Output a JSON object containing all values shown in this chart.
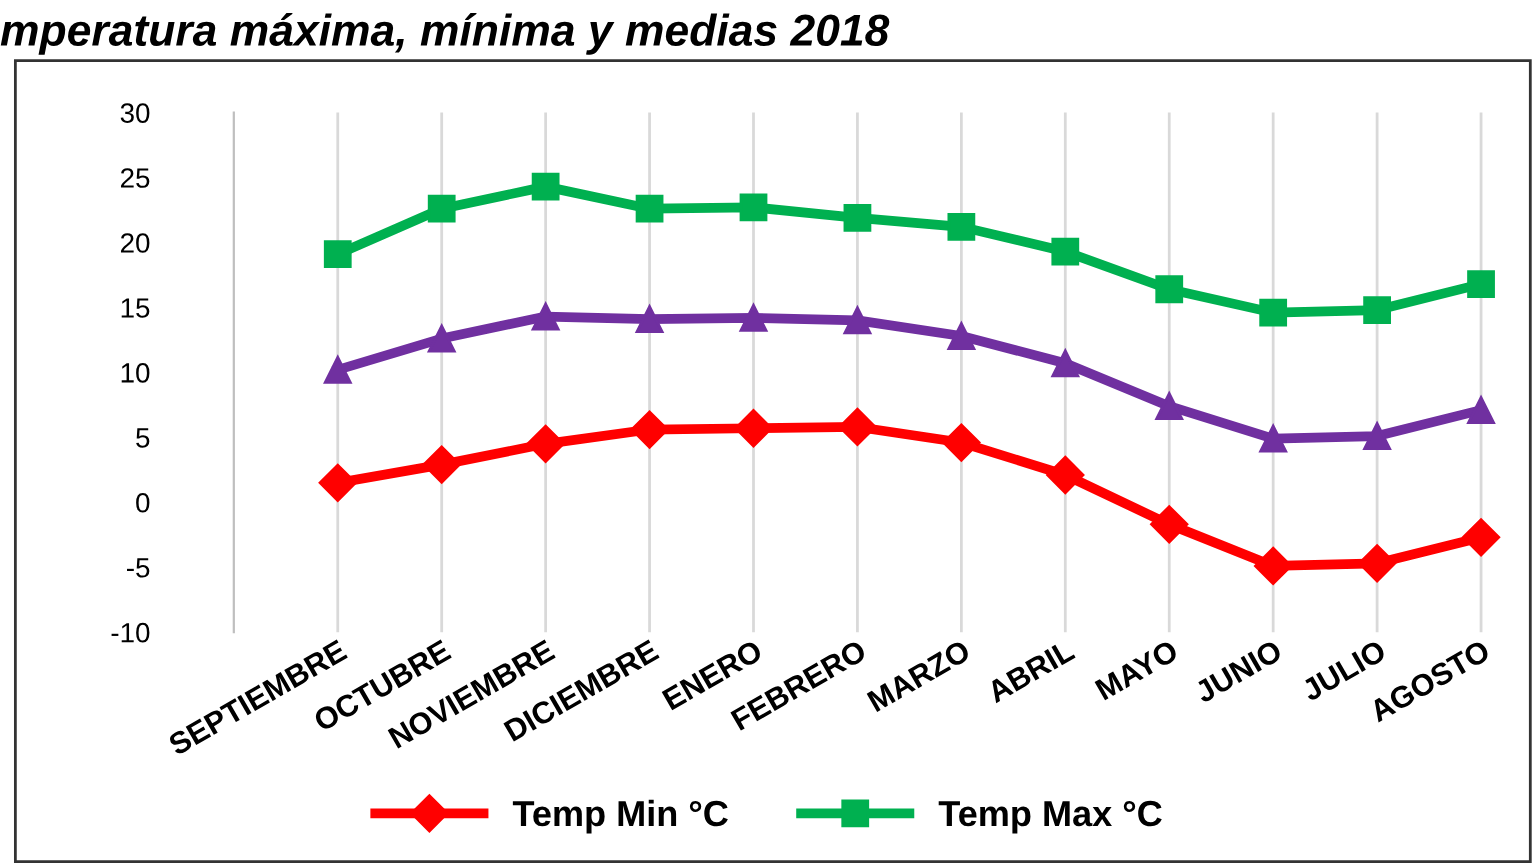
{
  "chart_data": {
    "type": "line",
    "title": "mperatura máxima, mínima y medias 2018",
    "categories": [
      "SEPTIEMBRE",
      "OCTUBRE",
      "NOVIEMBRE",
      "DICIEMBRE",
      "ENERO",
      "FEBRERO",
      "MARZO",
      "ABRIL",
      "MAYO",
      "JUNIO",
      "JULIO",
      "AGOSTO"
    ],
    "series": [
      {
        "name": "Temp Min °C",
        "color": "#ff0000",
        "marker": "diamond",
        "values": [
          1.5,
          2.9,
          4.5,
          5.6,
          5.7,
          5.8,
          4.6,
          2.1,
          -1.7,
          -4.9,
          -4.7,
          -2.7
        ]
      },
      {
        "color": "#7030a0",
        "marker": "triangle",
        "values": [
          10.2,
          12.6,
          14.3,
          14.1,
          14.2,
          14.0,
          12.8,
          10.7,
          7.4,
          4.9,
          5.1,
          7.1
        ]
      },
      {
        "name": "Temp Max °C",
        "color": "#00b050",
        "marker": "square",
        "values": [
          19.1,
          22.6,
          24.3,
          22.6,
          22.7,
          21.9,
          21.2,
          19.3,
          16.4,
          14.6,
          14.8,
          16.8
        ]
      }
    ],
    "ylim": [
      -10,
      30
    ],
    "yticks": [
      -10,
      -5,
      0,
      5,
      10,
      15,
      20,
      25,
      30
    ],
    "grid": "x",
    "legend": "bottom",
    "line_style": "solid"
  }
}
